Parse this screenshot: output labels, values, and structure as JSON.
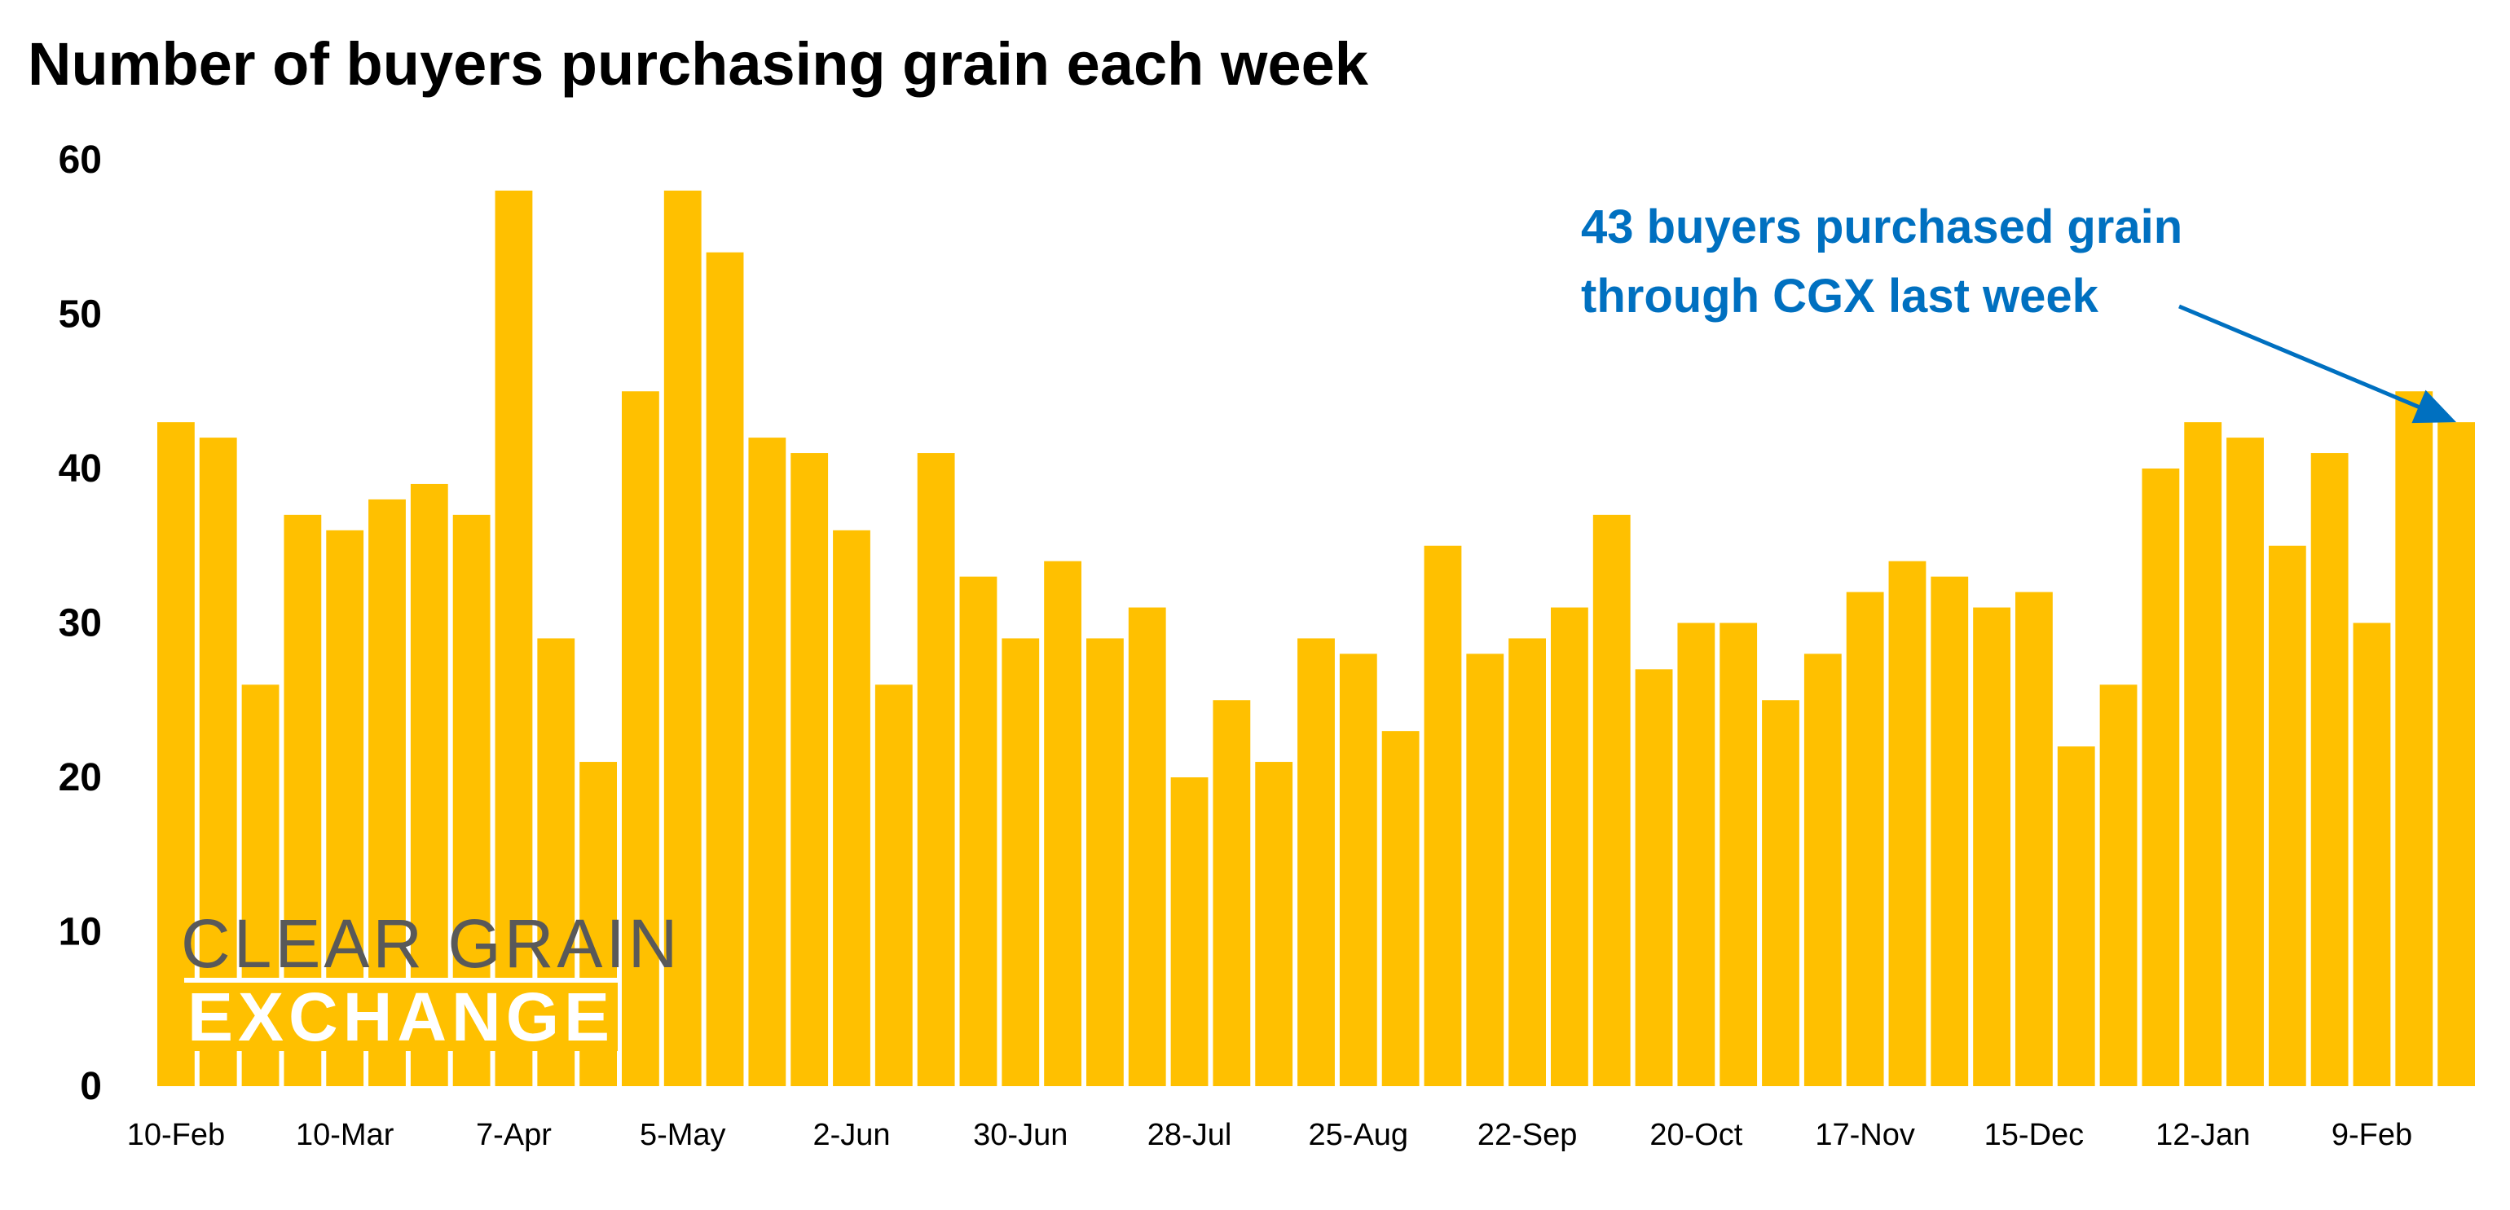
{
  "chart_data": {
    "type": "bar",
    "title": "Number of buyers purchasing grain each week",
    "xlabel": "",
    "ylabel": "",
    "ylim": [
      0,
      60
    ],
    "yticks": [
      0,
      10,
      20,
      30,
      40,
      50,
      60
    ],
    "grid": false,
    "bar_color": "#FFC000",
    "tick_labels": [
      "10-Feb",
      "10-Mar",
      "7-Apr",
      "5-May",
      "2-Jun",
      "30-Jun",
      "28-Jul",
      "25-Aug",
      "22-Sep",
      "20-Oct",
      "17-Nov",
      "15-Dec",
      "12-Jan",
      "9-Feb"
    ],
    "tick_every": 4,
    "values": [
      43,
      42,
      26,
      37,
      36,
      38,
      39,
      37,
      58,
      29,
      21,
      45,
      58,
      54,
      42,
      41,
      36,
      26,
      41,
      33,
      29,
      34,
      29,
      31,
      20,
      25,
      21,
      29,
      28,
      23,
      35,
      28,
      29,
      31,
      37,
      27,
      30,
      30,
      25,
      28,
      32,
      34,
      33,
      31,
      32,
      22,
      26,
      40,
      43,
      42,
      35,
      41,
      30,
      45,
      43
    ],
    "annotation": {
      "lines": [
        "43 buyers purchased grain",
        "through CGX last week"
      ],
      "color": "#0070C0",
      "points_to": "last bar"
    }
  },
  "logo": {
    "line1": "CLEAR GRAIN",
    "line2": "EXCHANGE"
  }
}
